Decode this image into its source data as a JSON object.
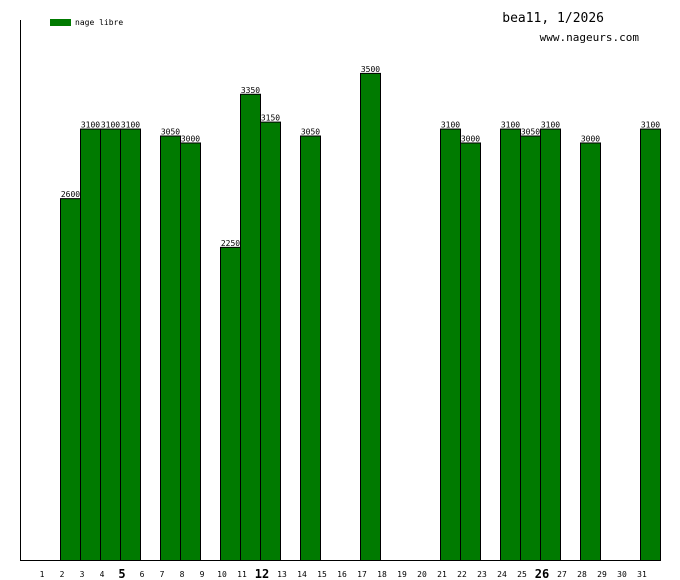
{
  "chart_data": {
    "type": "bar",
    "title": "bea11, 1/2026",
    "subtitle": "www.nageurs.com",
    "xlabel": "",
    "ylabel": "",
    "legend": {
      "position": "top-left",
      "entries": [
        {
          "label": "nage libre",
          "color": "#007a00"
        }
      ]
    },
    "categories": [
      "1",
      "2",
      "3",
      "4",
      "5",
      "6",
      "7",
      "8",
      "9",
      "10",
      "11",
      "12",
      "13",
      "14",
      "15",
      "16",
      "17",
      "18",
      "19",
      "20",
      "21",
      "22",
      "23",
      "24",
      "25",
      "26",
      "27",
      "28",
      "29",
      "30",
      "31"
    ],
    "bold_categories": [
      "5",
      "12",
      "26"
    ],
    "series": [
      {
        "name": "nage libre",
        "color": "#007a00",
        "values": [
          null,
          2600,
          3100,
          3100,
          3100,
          null,
          3050,
          3000,
          null,
          2250,
          3350,
          3150,
          null,
          3050,
          null,
          null,
          3500,
          null,
          null,
          null,
          3100,
          3000,
          null,
          3100,
          3050,
          3100,
          null,
          3000,
          null,
          null,
          3100
        ]
      }
    ],
    "ylim": [
      0,
      3880
    ],
    "grid": false
  }
}
